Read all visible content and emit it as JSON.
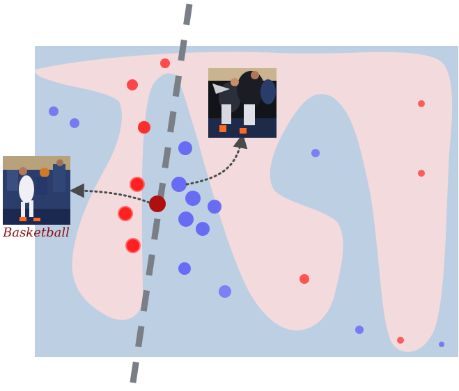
{
  "figure": {
    "label": "Basketball",
    "colors": {
      "background_region": "#bccfe3",
      "positive_region": "#f2dadd",
      "positive_point": "#ff2d2d",
      "negative_point": "#6a6cf5",
      "query_point": "#b00f0f",
      "boundary_line": "#7a7f87",
      "arrow": "#4a4a4a",
      "label": "#8b1010"
    },
    "images": [
      {
        "name": "thumbnail-left",
        "depicts": "basketball-layup-photo"
      },
      {
        "name": "thumbnail-top",
        "depicts": "basketball-crowd-photo"
      }
    ]
  }
}
